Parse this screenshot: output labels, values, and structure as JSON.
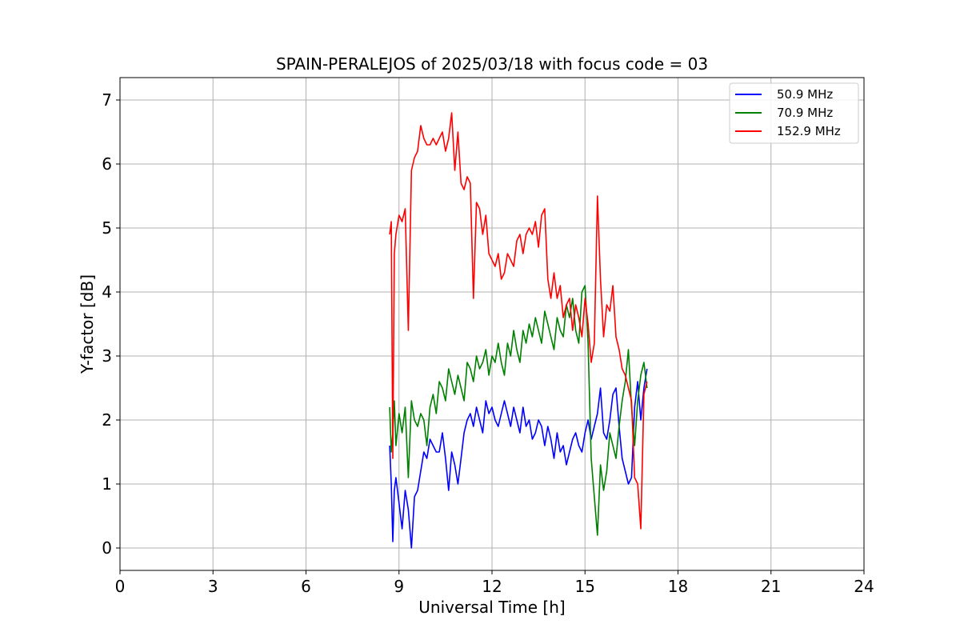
{
  "chart_data": {
    "type": "line",
    "title": "SPAIN-PERALEJOS of 2025/03/18 with focus code = 03",
    "xlabel": "Universal Time [h]",
    "ylabel": "Y-factor [dB]",
    "xlim": [
      0,
      24
    ],
    "ylim": [
      -0.35,
      7.35
    ],
    "xticks": [
      0,
      3,
      6,
      9,
      12,
      15,
      18,
      21,
      24
    ],
    "yticks": [
      0,
      1,
      2,
      3,
      4,
      5,
      6,
      7
    ],
    "grid": true,
    "legend_position": "top-right",
    "series": [
      {
        "name": "50.9 MHz",
        "color": "#0000ff",
        "x": [
          8.7,
          8.75,
          8.8,
          8.85,
          8.9,
          9.0,
          9.1,
          9.2,
          9.3,
          9.4,
          9.5,
          9.6,
          9.7,
          9.8,
          9.9,
          10.0,
          10.1,
          10.2,
          10.3,
          10.4,
          10.5,
          10.6,
          10.7,
          10.8,
          10.9,
          11.0,
          11.1,
          11.2,
          11.3,
          11.4,
          11.5,
          11.6,
          11.7,
          11.8,
          11.9,
          12.0,
          12.1,
          12.2,
          12.3,
          12.4,
          12.5,
          12.6,
          12.7,
          12.8,
          12.9,
          13.0,
          13.1,
          13.2,
          13.3,
          13.4,
          13.5,
          13.6,
          13.7,
          13.8,
          13.9,
          14.0,
          14.1,
          14.2,
          14.3,
          14.4,
          14.5,
          14.6,
          14.7,
          14.8,
          14.9,
          15.0,
          15.1,
          15.2,
          15.3,
          15.4,
          15.5,
          15.6,
          15.7,
          15.8,
          15.9,
          16.0,
          16.1,
          16.2,
          16.3,
          16.4,
          16.5,
          16.6,
          16.7,
          16.8,
          16.9,
          17.0
        ],
        "y": [
          1.6,
          1.0,
          0.1,
          0.9,
          1.1,
          0.7,
          0.3,
          0.9,
          0.6,
          0.0,
          0.8,
          0.9,
          1.2,
          1.5,
          1.4,
          1.7,
          1.6,
          1.5,
          1.5,
          1.8,
          1.4,
          0.9,
          1.5,
          1.3,
          1.0,
          1.4,
          1.8,
          2.0,
          2.1,
          1.9,
          2.2,
          2.0,
          1.8,
          2.3,
          2.1,
          2.2,
          2.0,
          1.9,
          2.1,
          2.3,
          2.1,
          1.9,
          2.2,
          2.0,
          1.8,
          2.2,
          1.9,
          2.0,
          1.7,
          1.8,
          2.0,
          1.9,
          1.6,
          1.9,
          1.7,
          1.4,
          1.8,
          1.5,
          1.6,
          1.3,
          1.5,
          1.7,
          1.8,
          1.6,
          1.5,
          1.8,
          2.0,
          1.7,
          1.9,
          2.1,
          2.5,
          1.8,
          1.7,
          2.0,
          2.4,
          2.5,
          1.9,
          1.4,
          1.2,
          1.0,
          1.1,
          2.2,
          2.6,
          2.0,
          2.5,
          2.8
        ]
      },
      {
        "name": "70.9 MHz",
        "color": "#008000",
        "x": [
          8.7,
          8.75,
          8.8,
          8.85,
          8.9,
          9.0,
          9.1,
          9.2,
          9.3,
          9.4,
          9.5,
          9.6,
          9.7,
          9.8,
          9.9,
          10.0,
          10.1,
          10.2,
          10.3,
          10.4,
          10.5,
          10.6,
          10.7,
          10.8,
          10.9,
          11.0,
          11.1,
          11.2,
          11.3,
          11.4,
          11.5,
          11.6,
          11.7,
          11.8,
          11.9,
          12.0,
          12.1,
          12.2,
          12.3,
          12.4,
          12.5,
          12.6,
          12.7,
          12.8,
          12.9,
          13.0,
          13.1,
          13.2,
          13.3,
          13.4,
          13.5,
          13.6,
          13.7,
          13.8,
          13.9,
          14.0,
          14.1,
          14.2,
          14.3,
          14.4,
          14.5,
          14.6,
          14.7,
          14.8,
          14.9,
          15.0,
          15.1,
          15.2,
          15.3,
          15.4,
          15.5,
          15.6,
          15.7,
          15.8,
          15.9,
          16.0,
          16.1,
          16.2,
          16.3,
          16.4,
          16.5,
          16.6,
          16.7,
          16.8,
          16.9,
          17.0
        ],
        "y": [
          2.2,
          1.5,
          1.8,
          2.3,
          1.6,
          2.1,
          1.8,
          2.2,
          1.1,
          2.3,
          2.0,
          1.9,
          2.1,
          2.0,
          1.6,
          2.2,
          2.4,
          2.1,
          2.6,
          2.5,
          2.3,
          2.8,
          2.6,
          2.4,
          2.7,
          2.5,
          2.3,
          2.9,
          2.8,
          2.6,
          3.0,
          2.8,
          2.9,
          3.1,
          2.7,
          3.0,
          2.9,
          3.2,
          2.9,
          2.7,
          3.2,
          3.0,
          3.4,
          3.1,
          2.9,
          3.4,
          3.2,
          3.5,
          3.3,
          3.6,
          3.4,
          3.2,
          3.7,
          3.5,
          3.3,
          3.1,
          3.6,
          3.4,
          3.3,
          3.8,
          3.6,
          3.9,
          3.4,
          3.2,
          4.0,
          4.1,
          3.2,
          1.4,
          0.8,
          0.2,
          1.3,
          0.9,
          1.2,
          1.8,
          1.6,
          1.4,
          1.9,
          2.3,
          2.6,
          3.1,
          2.2,
          1.6,
          2.3,
          2.7,
          2.9,
          2.5
        ]
      },
      {
        "name": "152.9 MHz",
        "color": "#ff0000",
        "x": [
          8.7,
          8.75,
          8.8,
          8.85,
          8.9,
          9.0,
          9.1,
          9.2,
          9.3,
          9.4,
          9.5,
          9.6,
          9.7,
          9.8,
          9.9,
          10.0,
          10.1,
          10.2,
          10.3,
          10.4,
          10.5,
          10.6,
          10.7,
          10.8,
          10.9,
          11.0,
          11.1,
          11.2,
          11.3,
          11.4,
          11.5,
          11.6,
          11.7,
          11.8,
          11.9,
          12.0,
          12.1,
          12.2,
          12.3,
          12.4,
          12.5,
          12.6,
          12.7,
          12.8,
          12.9,
          13.0,
          13.1,
          13.2,
          13.3,
          13.4,
          13.5,
          13.6,
          13.7,
          13.8,
          13.9,
          14.0,
          14.1,
          14.2,
          14.3,
          14.4,
          14.5,
          14.6,
          14.7,
          14.8,
          14.9,
          15.0,
          15.1,
          15.2,
          15.3,
          15.4,
          15.5,
          15.6,
          15.7,
          15.8,
          15.9,
          16.0,
          16.1,
          16.2,
          16.3,
          16.4,
          16.5,
          16.6,
          16.7,
          16.8,
          16.9,
          17.0
        ],
        "y": [
          4.9,
          5.1,
          1.4,
          4.6,
          4.9,
          5.2,
          5.1,
          5.3,
          3.4,
          5.9,
          6.1,
          6.2,
          6.6,
          6.4,
          6.3,
          6.3,
          6.4,
          6.3,
          6.4,
          6.5,
          6.2,
          6.4,
          6.8,
          5.9,
          6.5,
          5.7,
          5.6,
          5.8,
          5.7,
          3.9,
          5.4,
          5.3,
          4.9,
          5.2,
          4.6,
          4.5,
          4.4,
          4.6,
          4.2,
          4.3,
          4.6,
          4.5,
          4.4,
          4.8,
          4.9,
          4.6,
          4.9,
          5.0,
          4.9,
          5.1,
          4.7,
          5.2,
          5.3,
          4.2,
          3.9,
          4.3,
          3.9,
          4.1,
          3.6,
          3.8,
          3.9,
          3.4,
          3.8,
          3.6,
          3.3,
          3.9,
          3.5,
          2.9,
          3.2,
          5.5,
          4.2,
          3.3,
          3.8,
          3.7,
          4.1,
          3.3,
          3.1,
          2.8,
          2.7,
          2.5,
          2.3,
          1.1,
          1.0,
          0.3,
          2.4,
          2.6
        ]
      }
    ]
  }
}
